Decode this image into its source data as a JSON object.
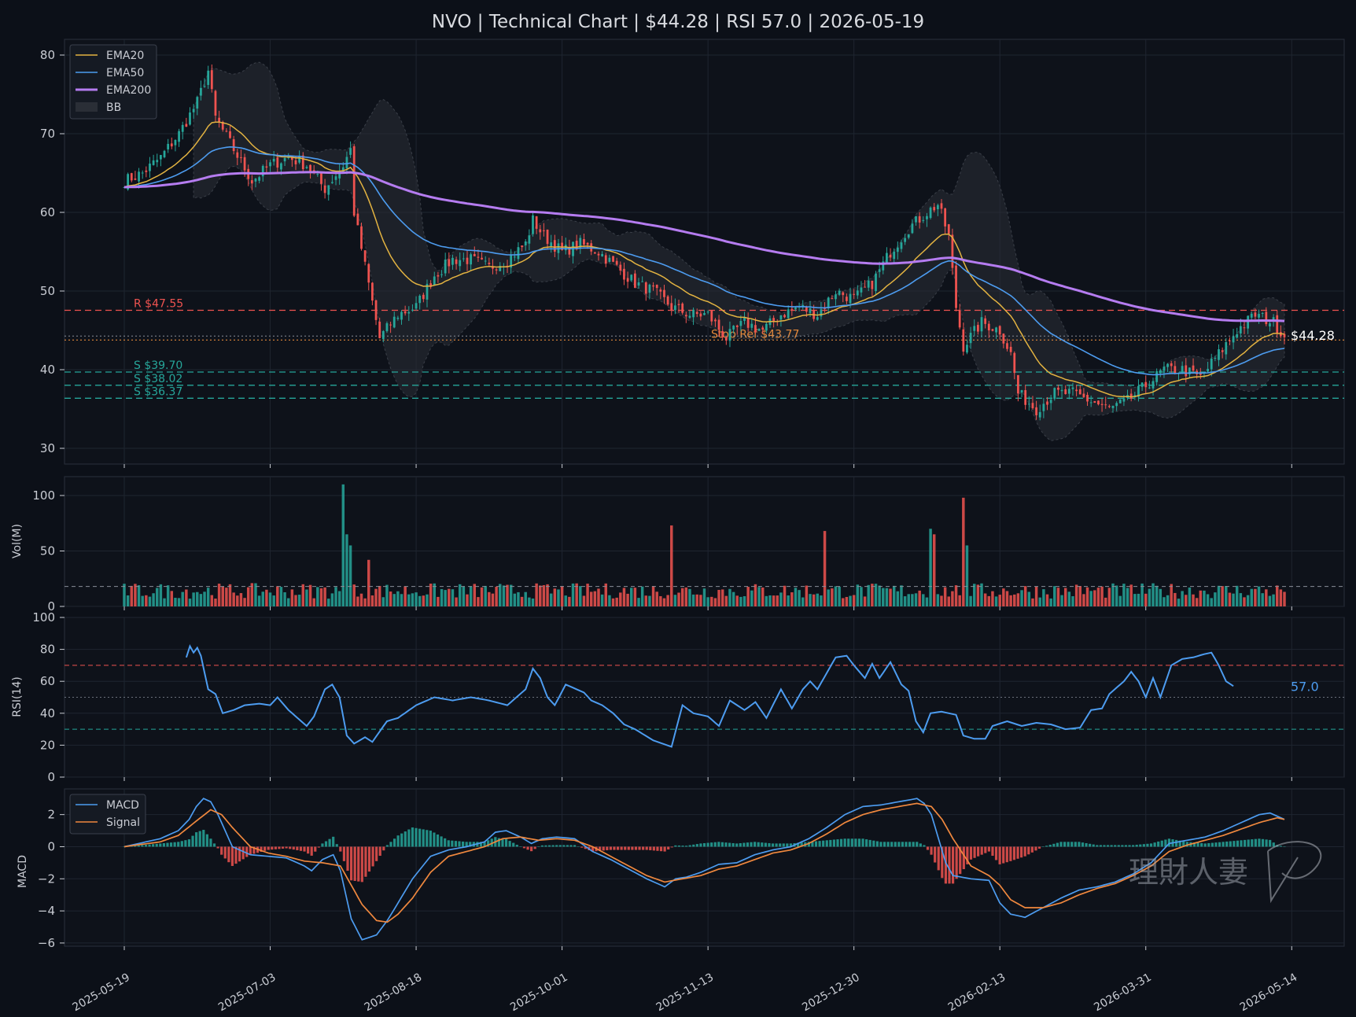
{
  "title": "NVO | Technical Chart | $44.28 | RSI 57.0 | 2026-05-19",
  "colors": {
    "background": "#0c1018",
    "panel": "#0e121a",
    "grid": "#1f2530",
    "up": "#26a69a",
    "down": "#ef5350",
    "ema20": "#e3b341",
    "ema50": "#4d9cf0",
    "ema200": "#b57cf0",
    "bb_fill": "#2a2e36",
    "resistance": "#ef5350",
    "support": "#26a69a",
    "stop": "#e3883a",
    "macd": "#4d9cf0",
    "signal": "#f0883e",
    "rsi": "#4d9cf0"
  },
  "chart_data": [
    {
      "type": "candlestick",
      "panel": "price",
      "x_ticks": [
        "2025-05-19",
        "2025-07-03",
        "2025-08-18",
        "2025-10-01",
        "2025-11-13",
        "2025-12-30",
        "2026-02-13",
        "2026-03-31",
        "2026-05-14"
      ],
      "ylim": [
        28,
        82
      ],
      "y_ticks": [
        30,
        40,
        50,
        60,
        70,
        80
      ],
      "legend": {
        "position": "top-left",
        "entries": [
          "EMA20",
          "EMA50",
          "EMA200",
          "BB"
        ]
      },
      "close_anchor_points": [
        [
          0,
          64
        ],
        [
          5,
          65
        ],
        [
          10,
          67
        ],
        [
          15,
          70
        ],
        [
          20,
          74
        ],
        [
          23,
          78
        ],
        [
          25,
          72
        ],
        [
          30,
          68
        ],
        [
          35,
          64
        ],
        [
          40,
          66
        ],
        [
          45,
          67
        ],
        [
          50,
          66
        ],
        [
          55,
          63
        ],
        [
          60,
          66
        ],
        [
          62,
          68
        ],
        [
          63,
          60
        ],
        [
          70,
          44
        ],
        [
          75,
          47
        ],
        [
          80,
          48
        ],
        [
          85,
          52
        ],
        [
          90,
          54
        ],
        [
          95,
          54
        ],
        [
          100,
          53
        ],
        [
          105,
          54
        ],
        [
          110,
          56
        ],
        [
          112,
          59
        ],
        [
          115,
          57
        ],
        [
          120,
          55
        ],
        [
          125,
          56
        ],
        [
          130,
          55
        ],
        [
          135,
          53
        ],
        [
          140,
          51
        ],
        [
          145,
          50
        ],
        [
          150,
          48
        ],
        [
          155,
          47
        ],
        [
          160,
          47
        ],
        [
          165,
          44
        ],
        [
          170,
          46
        ],
        [
          175,
          45
        ],
        [
          180,
          47
        ],
        [
          185,
          48
        ],
        [
          190,
          47
        ],
        [
          195,
          50
        ],
        [
          200,
          49
        ],
        [
          205,
          51
        ],
        [
          210,
          55
        ],
        [
          215,
          58
        ],
        [
          220,
          60
        ],
        [
          223,
          61
        ],
        [
          226,
          57
        ],
        [
          228,
          48
        ],
        [
          230,
          43
        ],
        [
          235,
          46
        ],
        [
          240,
          45
        ],
        [
          243,
          42
        ],
        [
          245,
          37
        ],
        [
          250,
          35
        ],
        [
          255,
          37
        ],
        [
          260,
          37
        ],
        [
          265,
          36
        ],
        [
          270,
          35
        ],
        [
          275,
          36
        ],
        [
          280,
          38
        ],
        [
          285,
          40
        ],
        [
          290,
          40
        ],
        [
          295,
          39
        ],
        [
          300,
          42
        ],
        [
          305,
          45
        ],
        [
          310,
          47
        ],
        [
          315,
          46
        ],
        [
          318,
          44.28
        ]
      ],
      "support_resistance": [
        {
          "label": "R $47.55",
          "value": 47.55,
          "kind": "resistance"
        },
        {
          "label": "S $39.70",
          "value": 39.7,
          "kind": "support"
        },
        {
          "label": "S $38.02",
          "value": 38.02,
          "kind": "support"
        },
        {
          "label": "S $36.37",
          "value": 36.37,
          "kind": "support"
        }
      ],
      "stop_ref": {
        "label": "Stop Ref $43.77",
        "value": 43.77
      },
      "last_price": {
        "label": "$44.28",
        "value": 44.28
      }
    },
    {
      "type": "bar",
      "panel": "volume",
      "ylabel": "Vol(M)",
      "ylim": [
        0,
        117
      ],
      "y_ticks": [
        0,
        50,
        100
      ],
      "average": 18,
      "spikes": [
        [
          60,
          110
        ],
        [
          61,
          65
        ],
        [
          62,
          55
        ],
        [
          67,
          42
        ],
        [
          150,
          73
        ],
        [
          192,
          68
        ],
        [
          221,
          70
        ],
        [
          222,
          65
        ],
        [
          230,
          98
        ],
        [
          231,
          55
        ]
      ]
    },
    {
      "type": "line",
      "panel": "rsi",
      "ylabel": "RSI(14)",
      "ylim": [
        0,
        100
      ],
      "y_ticks": [
        0,
        20,
        40,
        60,
        80,
        100
      ],
      "overbought": 70,
      "oversold": 30,
      "midline": 50,
      "last_label": "57.0",
      "anchor_points": [
        [
          17,
          75
        ],
        [
          18,
          82
        ],
        [
          19,
          78
        ],
        [
          20,
          81
        ],
        [
          21,
          76
        ],
        [
          23,
          55
        ],
        [
          25,
          52
        ],
        [
          27,
          40
        ],
        [
          30,
          42
        ],
        [
          33,
          45
        ],
        [
          37,
          46
        ],
        [
          40,
          45
        ],
        [
          42,
          50
        ],
        [
          45,
          42
        ],
        [
          50,
          32
        ],
        [
          52,
          38
        ],
        [
          55,
          55
        ],
        [
          57,
          58
        ],
        [
          59,
          50
        ],
        [
          61,
          26
        ],
        [
          63,
          21
        ],
        [
          66,
          25
        ],
        [
          68,
          22
        ],
        [
          72,
          35
        ],
        [
          75,
          37
        ],
        [
          80,
          45
        ],
        [
          85,
          50
        ],
        [
          90,
          48
        ],
        [
          95,
          50
        ],
        [
          100,
          48
        ],
        [
          105,
          45
        ],
        [
          110,
          55
        ],
        [
          112,
          68
        ],
        [
          114,
          62
        ],
        [
          116,
          50
        ],
        [
          118,
          45
        ],
        [
          121,
          58
        ],
        [
          124,
          55
        ],
        [
          126,
          53
        ],
        [
          128,
          48
        ],
        [
          131,
          45
        ],
        [
          134,
          40
        ],
        [
          137,
          33
        ],
        [
          140,
          30
        ],
        [
          145,
          23
        ],
        [
          150,
          19
        ],
        [
          153,
          45
        ],
        [
          156,
          40
        ],
        [
          160,
          38
        ],
        [
          163,
          32
        ],
        [
          166,
          48
        ],
        [
          170,
          42
        ],
        [
          173,
          47
        ],
        [
          176,
          37
        ],
        [
          180,
          55
        ],
        [
          183,
          43
        ],
        [
          186,
          55
        ],
        [
          188,
          60
        ],
        [
          190,
          55
        ],
        [
          195,
          75
        ],
        [
          198,
          76
        ],
        [
          200,
          70
        ],
        [
          203,
          62
        ],
        [
          205,
          71
        ],
        [
          207,
          62
        ],
        [
          210,
          72
        ],
        [
          213,
          58
        ],
        [
          215,
          54
        ],
        [
          217,
          35
        ],
        [
          219,
          28
        ],
        [
          221,
          40
        ],
        [
          224,
          41
        ],
        [
          228,
          39
        ],
        [
          230,
          26
        ],
        [
          233,
          24
        ],
        [
          236,
          24
        ],
        [
          238,
          32
        ],
        [
          242,
          35
        ],
        [
          246,
          32
        ],
        [
          250,
          34
        ],
        [
          254,
          33
        ],
        [
          258,
          30
        ],
        [
          262,
          31
        ],
        [
          265,
          42
        ],
        [
          268,
          43
        ],
        [
          270,
          52
        ],
        [
          274,
          60
        ],
        [
          276,
          66
        ],
        [
          278,
          60
        ],
        [
          280,
          50
        ],
        [
          282,
          62
        ],
        [
          284,
          50
        ],
        [
          287,
          70
        ],
        [
          290,
          74
        ],
        [
          293,
          75
        ],
        [
          296,
          77
        ],
        [
          298,
          78
        ],
        [
          300,
          70
        ],
        [
          302,
          60
        ],
        [
          304,
          57
        ]
      ]
    },
    {
      "type": "line",
      "panel": "macd",
      "ylabel": "MACD",
      "ylim": [
        -6.2,
        3.6
      ],
      "y_ticks": [
        "2",
        "0",
        "−2",
        "−4",
        "−6"
      ],
      "legend": {
        "position": "top-left",
        "entries": [
          "MACD",
          "Signal"
        ]
      },
      "macd_anchor_points": [
        [
          0,
          0
        ],
        [
          10,
          0.5
        ],
        [
          15,
          1
        ],
        [
          18,
          1.7
        ],
        [
          20,
          2.5
        ],
        [
          22,
          3
        ],
        [
          24,
          2.8
        ],
        [
          26,
          2
        ],
        [
          30,
          0
        ],
        [
          35,
          -0.5
        ],
        [
          40,
          -0.6
        ],
        [
          45,
          -0.7
        ],
        [
          50,
          -1.2
        ],
        [
          52,
          -1.5
        ],
        [
          55,
          -0.8
        ],
        [
          58,
          -0.5
        ],
        [
          60,
          -1.5
        ],
        [
          63,
          -4.5
        ],
        [
          66,
          -5.8
        ],
        [
          70,
          -5.5
        ],
        [
          73,
          -4.6
        ],
        [
          76,
          -3.5
        ],
        [
          80,
          -2
        ],
        [
          85,
          -0.6
        ],
        [
          90,
          -0.2
        ],
        [
          95,
          0
        ],
        [
          100,
          0.3
        ],
        [
          103,
          0.9
        ],
        [
          106,
          1
        ],
        [
          110,
          0.6
        ],
        [
          113,
          0.2
        ],
        [
          116,
          0.5
        ],
        [
          120,
          0.6
        ],
        [
          125,
          0.5
        ],
        [
          130,
          -0.3
        ],
        [
          135,
          -0.8
        ],
        [
          140,
          -1.4
        ],
        [
          145,
          -2
        ],
        [
          150,
          -2.5
        ],
        [
          153,
          -2
        ],
        [
          156,
          -1.9
        ],
        [
          160,
          -1.6
        ],
        [
          165,
          -1.1
        ],
        [
          170,
          -1
        ],
        [
          175,
          -0.5
        ],
        [
          180,
          -0.2
        ],
        [
          185,
          0
        ],
        [
          190,
          0.5
        ],
        [
          195,
          1.2
        ],
        [
          200,
          2
        ],
        [
          205,
          2.5
        ],
        [
          210,
          2.6
        ],
        [
          215,
          2.8
        ],
        [
          220,
          3
        ],
        [
          222,
          2.7
        ],
        [
          224,
          2
        ],
        [
          226,
          0.5
        ],
        [
          228,
          -1
        ],
        [
          230,
          -1.8
        ],
        [
          235,
          -2
        ],
        [
          240,
          -2.1
        ],
        [
          243,
          -3.5
        ],
        [
          246,
          -4.2
        ],
        [
          250,
          -4.4
        ],
        [
          255,
          -3.8
        ],
        [
          260,
          -3.2
        ],
        [
          265,
          -2.7
        ],
        [
          270,
          -2.5
        ],
        [
          275,
          -2.2
        ],
        [
          280,
          -1.7
        ],
        [
          285,
          -1
        ],
        [
          290,
          0.2
        ],
        [
          295,
          0.4
        ],
        [
          300,
          0.6
        ],
        [
          305,
          1
        ],
        [
          310,
          1.5
        ],
        [
          315,
          2
        ],
        [
          318,
          2.1
        ],
        [
          322,
          1.7
        ]
      ],
      "signal_anchor_points": [
        [
          0,
          0
        ],
        [
          10,
          0.3
        ],
        [
          15,
          0.7
        ],
        [
          20,
          1.6
        ],
        [
          24,
          2.3
        ],
        [
          27,
          2
        ],
        [
          30,
          1.2
        ],
        [
          35,
          0
        ],
        [
          40,
          -0.4
        ],
        [
          45,
          -0.6
        ],
        [
          50,
          -0.9
        ],
        [
          55,
          -1
        ],
        [
          60,
          -1.2
        ],
        [
          63,
          -2.4
        ],
        [
          66,
          -3.6
        ],
        [
          70,
          -4.6
        ],
        [
          73,
          -4.7
        ],
        [
          76,
          -4.2
        ],
        [
          80,
          -3.2
        ],
        [
          85,
          -1.6
        ],
        [
          90,
          -0.6
        ],
        [
          95,
          -0.3
        ],
        [
          100,
          0
        ],
        [
          105,
          0.5
        ],
        [
          110,
          0.6
        ],
        [
          115,
          0.4
        ],
        [
          120,
          0.5
        ],
        [
          125,
          0.4
        ],
        [
          130,
          0
        ],
        [
          135,
          -0.6
        ],
        [
          140,
          -1.2
        ],
        [
          145,
          -1.8
        ],
        [
          150,
          -2.2
        ],
        [
          155,
          -2
        ],
        [
          160,
          -1.8
        ],
        [
          165,
          -1.4
        ],
        [
          170,
          -1.2
        ],
        [
          175,
          -0.8
        ],
        [
          180,
          -0.4
        ],
        [
          185,
          -0.2
        ],
        [
          190,
          0.2
        ],
        [
          195,
          0.8
        ],
        [
          200,
          1.5
        ],
        [
          205,
          2
        ],
        [
          210,
          2.3
        ],
        [
          215,
          2.5
        ],
        [
          220,
          2.7
        ],
        [
          224,
          2.5
        ],
        [
          227,
          1.7
        ],
        [
          230,
          0.5
        ],
        [
          235,
          -1.2
        ],
        [
          240,
          -1.8
        ],
        [
          243,
          -2.4
        ],
        [
          246,
          -3.3
        ],
        [
          250,
          -3.8
        ],
        [
          255,
          -3.8
        ],
        [
          260,
          -3.5
        ],
        [
          265,
          -3
        ],
        [
          270,
          -2.6
        ],
        [
          275,
          -2.3
        ],
        [
          280,
          -1.8
        ],
        [
          285,
          -1.2
        ],
        [
          290,
          -0.3
        ],
        [
          295,
          0.1
        ],
        [
          300,
          0.4
        ],
        [
          305,
          0.7
        ],
        [
          310,
          1.1
        ],
        [
          315,
          1.5
        ],
        [
          320,
          1.8
        ],
        [
          322,
          1.7
        ]
      ]
    }
  ],
  "watermark": {
    "text": "理財人妻",
    "signature": "Vivi"
  }
}
